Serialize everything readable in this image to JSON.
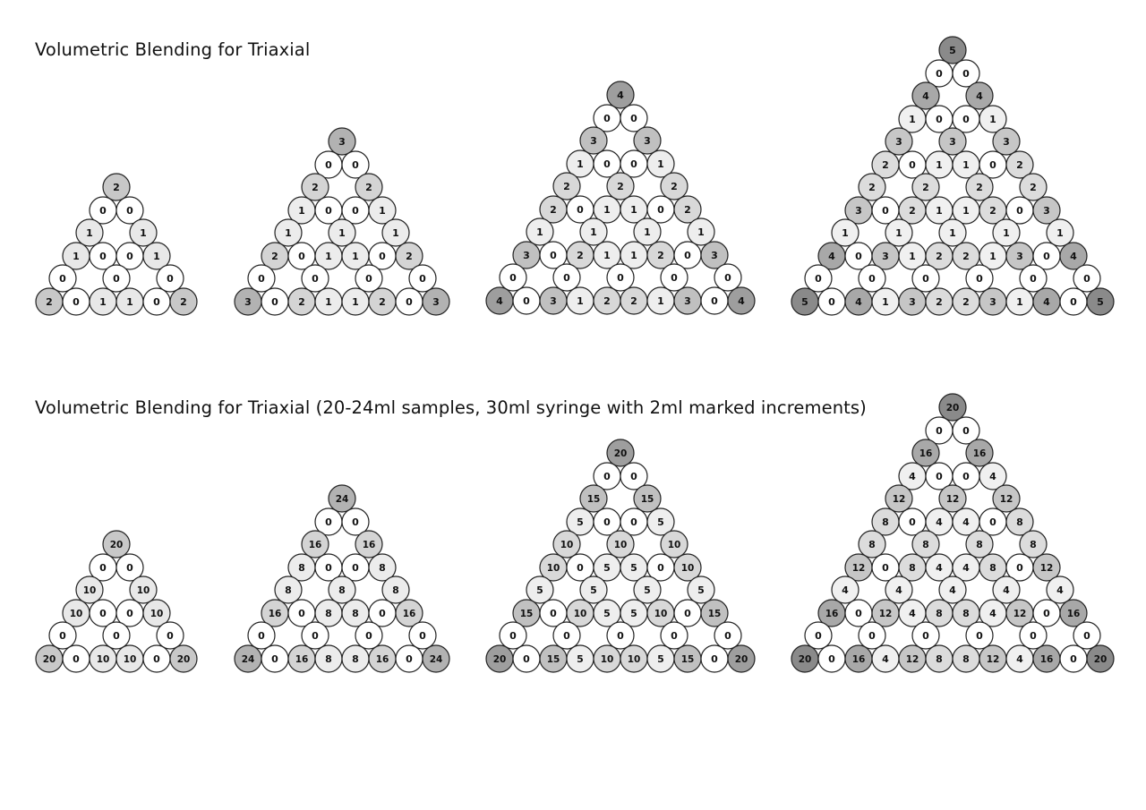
{
  "sections": [
    {
      "title": "Volumetric Blending for Triaxial",
      "diagrams": [
        {
          "n": 2,
          "unit": 1
        },
        {
          "n": 3,
          "unit": 1
        },
        {
          "n": 4,
          "unit": 1
        },
        {
          "n": 5,
          "unit": 1
        }
      ]
    },
    {
      "title": "Volumetric Blending for Triaxial (20-24ml samples, 30ml syringe with 2ml marked increments)",
      "diagrams": [
        {
          "n": 2,
          "unit": 10
        },
        {
          "n": 3,
          "unit": 8
        },
        {
          "n": 4,
          "unit": 5
        },
        {
          "n": 5,
          "unit": 4
        }
      ]
    }
  ],
  "colors": {
    "level_1_of_2": "#e8e8e8",
    "level_2_of_2": "#c8c8c8",
    "level_1_of_3": "#ececec",
    "level_2_of_3": "#d4d4d4",
    "level_3_of_3": "#b2b2b2",
    "level_1_of_4": "#eeeeee",
    "level_2_of_4": "#d8d8d8",
    "level_3_of_4": "#c0c0c0",
    "level_4_of_4": "#9e9e9e",
    "level_1_of_5": "#f0f0f0",
    "level_2_of_5": "#dcdcdc",
    "level_3_of_5": "#c6c6c6",
    "level_4_of_5": "#a8a8a8",
    "level_5_of_5": "#8a8a8a",
    "zero": "#ffffff",
    "stroke": "#222222"
  }
}
